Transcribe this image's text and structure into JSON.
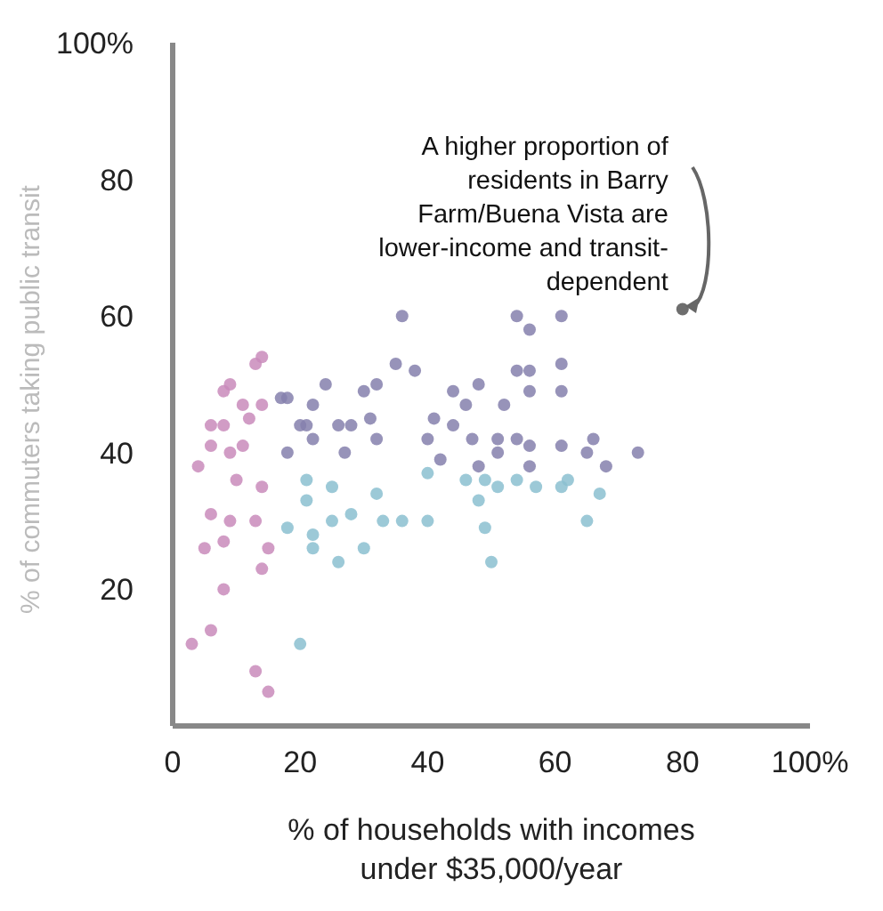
{
  "chart_data": {
    "type": "scatter",
    "xlabel": "% of households with incomes under $35,000/year",
    "ylabel": "% of commuters taking public transit",
    "xlim": [
      0,
      100
    ],
    "ylim": [
      0,
      100
    ],
    "xticks": [
      0,
      20,
      40,
      60,
      80,
      {
        "value": 100,
        "label": "100%"
      }
    ],
    "yticks": [
      20,
      40,
      60,
      80,
      {
        "value": 100,
        "label": "100%"
      }
    ],
    "grid": false,
    "legend": false,
    "marker": "circle",
    "annotations": [
      {
        "text": "A higher proportion of residents in Barry Farm/Buena Vista are lower-income and transit-dependent",
        "x": 80,
        "y": 61
      }
    ],
    "series": [
      {
        "color": "#c98bbb",
        "x": [
          14,
          13,
          9,
          8,
          11,
          14,
          12,
          6,
          8,
          6,
          9,
          11,
          4,
          10,
          14,
          6,
          9,
          13,
          8,
          5,
          15,
          14,
          8,
          3,
          6,
          13,
          15
        ],
        "values": [
          54,
          53,
          50,
          49,
          47,
          47,
          45,
          44,
          44,
          41,
          40,
          41,
          38,
          36,
          35,
          31,
          30,
          30,
          27,
          26,
          26,
          23,
          20,
          12,
          14,
          8,
          5
        ]
      },
      {
        "color": "#8580ad",
        "x": [
          36,
          35,
          38,
          32,
          30,
          24,
          17,
          18,
          22,
          20,
          21,
          26,
          28,
          31,
          22,
          32,
          18,
          27,
          54,
          56,
          61,
          61,
          54,
          56,
          56,
          61,
          48,
          44,
          46,
          52,
          41,
          44,
          40,
          47,
          51,
          51,
          54,
          56,
          61,
          66,
          65,
          42,
          48,
          56,
          68,
          73
        ],
        "values": [
          60,
          53,
          52,
          50,
          49,
          50,
          48,
          48,
          47,
          44,
          44,
          44,
          44,
          45,
          42,
          42,
          40,
          40,
          60,
          58,
          60,
          53,
          52,
          52,
          49,
          49,
          50,
          49,
          47,
          47,
          45,
          44,
          42,
          42,
          42,
          40,
          42,
          41,
          41,
          42,
          40,
          39,
          38,
          38,
          38,
          40
        ]
      },
      {
        "color": "#8bbfd0",
        "x": [
          21,
          25,
          32,
          21,
          18,
          22,
          25,
          28,
          33,
          36,
          22,
          30,
          26,
          20,
          40,
          46,
          49,
          51,
          54,
          57,
          62,
          61,
          67,
          48,
          40,
          49,
          65,
          50
        ],
        "values": [
          36,
          35,
          34,
          33,
          29,
          28,
          30,
          31,
          30,
          30,
          26,
          26,
          24,
          12,
          37,
          36,
          36,
          35,
          36,
          35,
          36,
          35,
          34,
          33,
          30,
          29,
          30,
          24
        ]
      },
      {
        "color": "#555555",
        "x": [
          80
        ],
        "values": [
          61
        ]
      }
    ]
  }
}
